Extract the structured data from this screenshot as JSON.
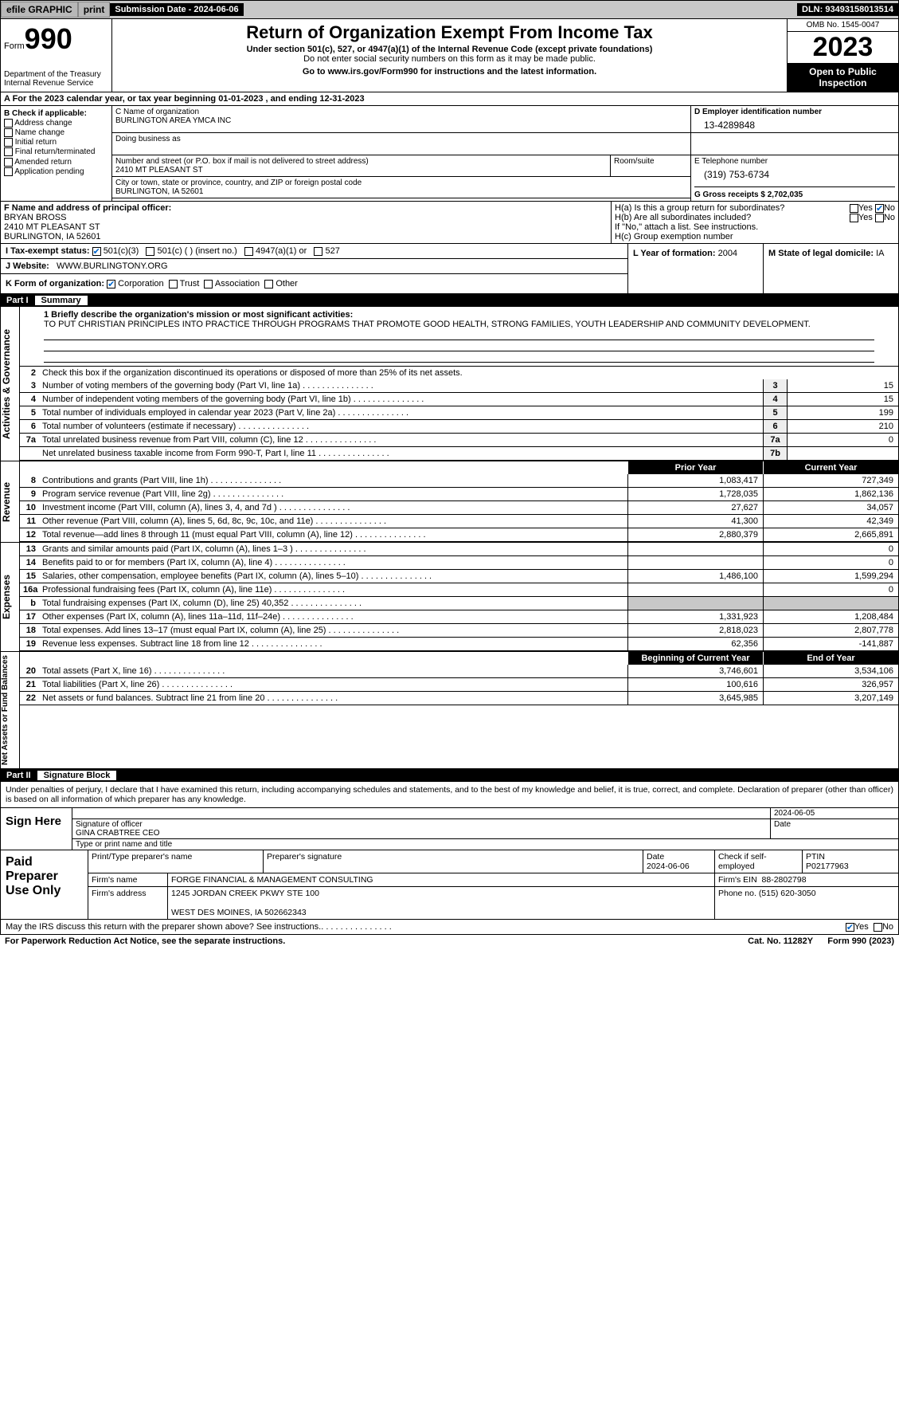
{
  "topbar": {
    "efile": "efile GRAPHIC",
    "print": "print",
    "submission": "Submission Date - 2024-06-06",
    "dln": "DLN: 93493158013514"
  },
  "header": {
    "form": "Form",
    "num": "990",
    "dept": "Department of the Treasury Internal Revenue Service",
    "title": "Return of Organization Exempt From Income Tax",
    "sub": "Under section 501(c), 527, or 4947(a)(1) of the Internal Revenue Code (except private foundations)",
    "sub2": "Do not enter social security numbers on this form as it may be made public.",
    "goto": "Go to www.irs.gov/Form990 for instructions and the latest information.",
    "omb": "OMB No. 1545-0047",
    "year": "2023",
    "inspect": "Open to Public Inspection"
  },
  "rowA": "A For the 2023 calendar year, or tax year beginning 01-01-2023    , and ending 12-31-2023",
  "boxB": {
    "hdr": "B Check if applicable:",
    "items": [
      "Address change",
      "Name change",
      "Initial return",
      "Final return/terminated",
      "Amended return",
      "Application pending"
    ]
  },
  "boxC": {
    "label": "C Name of organization",
    "name": "BURLINGTON AREA YMCA INC",
    "dba_label": "Doing business as",
    "street_label": "Number and street (or P.O. box if mail is not delivered to street address)",
    "street": "2410 MT PLEASANT ST",
    "room_label": "Room/suite",
    "city_label": "City or town, state or province, country, and ZIP or foreign postal code",
    "city": "BURLINGTON, IA  52601"
  },
  "boxD": {
    "label": "D Employer identification number",
    "ein": "13-4289848"
  },
  "boxE": {
    "label": "E Telephone number",
    "phone": "(319) 753-6734"
  },
  "boxG": {
    "label": "G Gross receipts $",
    "val": "2,702,035"
  },
  "boxF": {
    "label": "F  Name and address of principal officer:",
    "name": "BRYAN BROSS",
    "street": "2410 MT PLEASANT ST",
    "city": "BURLINGTON, IA  52601"
  },
  "boxH": {
    "a": "H(a)  Is this a group return for subordinates?",
    "b": "H(b)  Are all subordinates included?",
    "b2": "If \"No,\" attach a list. See instructions.",
    "c": "H(c)  Group exemption number"
  },
  "boxI": {
    "label": "I   Tax-exempt status:",
    "o1": "501(c)(3)",
    "o2": "501(c) (  ) (insert no.)",
    "o3": "4947(a)(1) or",
    "o4": "527"
  },
  "boxJ": {
    "label": "J   Website:",
    "val": "WWW.BURLINGTONY.ORG"
  },
  "boxK": {
    "label": "K Form of organization:",
    "o1": "Corporation",
    "o2": "Trust",
    "o3": "Association",
    "o4": "Other"
  },
  "boxL": {
    "label": "L Year of formation:",
    "val": "2004"
  },
  "boxM": {
    "label": "M State of legal domicile:",
    "val": "IA"
  },
  "part1": {
    "num": "Part I",
    "title": "Summary"
  },
  "summary": {
    "l1a": "1   Briefly describe the organization's mission or most significant activities:",
    "l1b": "TO PUT CHRISTIAN PRINCIPLES INTO PRACTICE THROUGH PROGRAMS THAT PROMOTE GOOD HEALTH, STRONG FAMILIES, YOUTH LEADERSHIP AND COMMUNITY DEVELOPMENT.",
    "l2": "Check this box      if the organization discontinued its operations or disposed of more than 25% of its net assets.",
    "lines_ag": [
      {
        "n": "3",
        "t": "Number of voting members of the governing body (Part VI, line 1a)",
        "b": "3",
        "v": "15"
      },
      {
        "n": "4",
        "t": "Number of independent voting members of the governing body (Part VI, line 1b)",
        "b": "4",
        "v": "15"
      },
      {
        "n": "5",
        "t": "Total number of individuals employed in calendar year 2023 (Part V, line 2a)",
        "b": "5",
        "v": "199"
      },
      {
        "n": "6",
        "t": "Total number of volunteers (estimate if necessary)",
        "b": "6",
        "v": "210"
      },
      {
        "n": "7a",
        "t": "Total unrelated business revenue from Part VIII, column (C), line 12",
        "b": "7a",
        "v": "0"
      },
      {
        "n": "",
        "t": "Net unrelated business taxable income from Form 990-T, Part I, line 11",
        "b": "7b",
        "v": ""
      }
    ],
    "col_prior": "Prior Year",
    "col_curr": "Current Year",
    "rev": [
      {
        "n": "8",
        "t": "Contributions and grants (Part VIII, line 1h)",
        "p": "1,083,417",
        "c": "727,349"
      },
      {
        "n": "9",
        "t": "Program service revenue (Part VIII, line 2g)",
        "p": "1,728,035",
        "c": "1,862,136"
      },
      {
        "n": "10",
        "t": "Investment income (Part VIII, column (A), lines 3, 4, and 7d )",
        "p": "27,627",
        "c": "34,057"
      },
      {
        "n": "11",
        "t": "Other revenue (Part VIII, column (A), lines 5, 6d, 8c, 9c, 10c, and 11e)",
        "p": "41,300",
        "c": "42,349"
      },
      {
        "n": "12",
        "t": "Total revenue—add lines 8 through 11 (must equal Part VIII, column (A), line 12)",
        "p": "2,880,379",
        "c": "2,665,891"
      }
    ],
    "exp": [
      {
        "n": "13",
        "t": "Grants and similar amounts paid (Part IX, column (A), lines 1–3 )",
        "p": "",
        "c": "0"
      },
      {
        "n": "14",
        "t": "Benefits paid to or for members (Part IX, column (A), line 4)",
        "p": "",
        "c": "0"
      },
      {
        "n": "15",
        "t": "Salaries, other compensation, employee benefits (Part IX, column (A), lines 5–10)",
        "p": "1,486,100",
        "c": "1,599,294"
      },
      {
        "n": "16a",
        "t": "Professional fundraising fees (Part IX, column (A), line 11e)",
        "p": "",
        "c": "0"
      },
      {
        "n": "b",
        "t": "Total fundraising expenses (Part IX, column (D), line 25) 40,352",
        "p": "SHADE",
        "c": "SHADE"
      },
      {
        "n": "17",
        "t": "Other expenses (Part IX, column (A), lines 11a–11d, 11f–24e)",
        "p": "1,331,923",
        "c": "1,208,484"
      },
      {
        "n": "18",
        "t": "Total expenses. Add lines 13–17 (must equal Part IX, column (A), line 25)",
        "p": "2,818,023",
        "c": "2,807,778"
      },
      {
        "n": "19",
        "t": "Revenue less expenses. Subtract line 18 from line 12",
        "p": "62,356",
        "c": "-141,887"
      }
    ],
    "col_beg": "Beginning of Current Year",
    "col_end": "End of Year",
    "na": [
      {
        "n": "20",
        "t": "Total assets (Part X, line 16)",
        "p": "3,746,601",
        "c": "3,534,106"
      },
      {
        "n": "21",
        "t": "Total liabilities (Part X, line 26)",
        "p": "100,616",
        "c": "326,957"
      },
      {
        "n": "22",
        "t": "Net assets or fund balances. Subtract line 21 from line 20",
        "p": "3,645,985",
        "c": "3,207,149"
      }
    ],
    "vtab_ag": "Activities & Governance",
    "vtab_rev": "Revenue",
    "vtab_exp": "Expenses",
    "vtab_na": "Net Assets or Fund Balances"
  },
  "part2": {
    "num": "Part II",
    "title": "Signature Block"
  },
  "sig": {
    "para": "Under penalties of perjury, I declare that I have examined this return, including accompanying schedules and statements, and to the best of my knowledge and belief, it is true, correct, and complete. Declaration of preparer (other than officer) is based on all information of which preparer has any knowledge.",
    "sign_here": "Sign Here",
    "date1": "2024-06-05",
    "sig_label": "Signature of officer",
    "officer": "GINA CRABTREE CEO",
    "type_label": "Type or print name and title",
    "date_label": "Date",
    "paid": "Paid Preparer Use Only",
    "pt_name_label": "Print/Type preparer's name",
    "pt_sig_label": "Preparer's signature",
    "pt_date": "2024-06-06",
    "check_se": "Check       if self-employed",
    "ptin_label": "PTIN",
    "ptin": "P02177963",
    "firm_name_label": "Firm's name",
    "firm_name": "FORGE FINANCIAL & MANAGEMENT CONSULTING",
    "firm_ein_label": "Firm's EIN",
    "firm_ein": "88-2802798",
    "firm_addr_label": "Firm's address",
    "firm_addr1": "1245 JORDAN CREEK PKWY STE 100",
    "firm_addr2": "WEST DES MOINES, IA  502662343",
    "phone_label": "Phone no.",
    "phone": "(515) 620-3050",
    "irs_q": "May the IRS discuss this return with the preparer shown above? See instructions."
  },
  "footer": {
    "pra": "For Paperwork Reduction Act Notice, see the separate instructions.",
    "cat": "Cat. No. 11282Y",
    "form": "Form 990 (2023)"
  },
  "yn": {
    "yes": "Yes",
    "no": "No"
  }
}
